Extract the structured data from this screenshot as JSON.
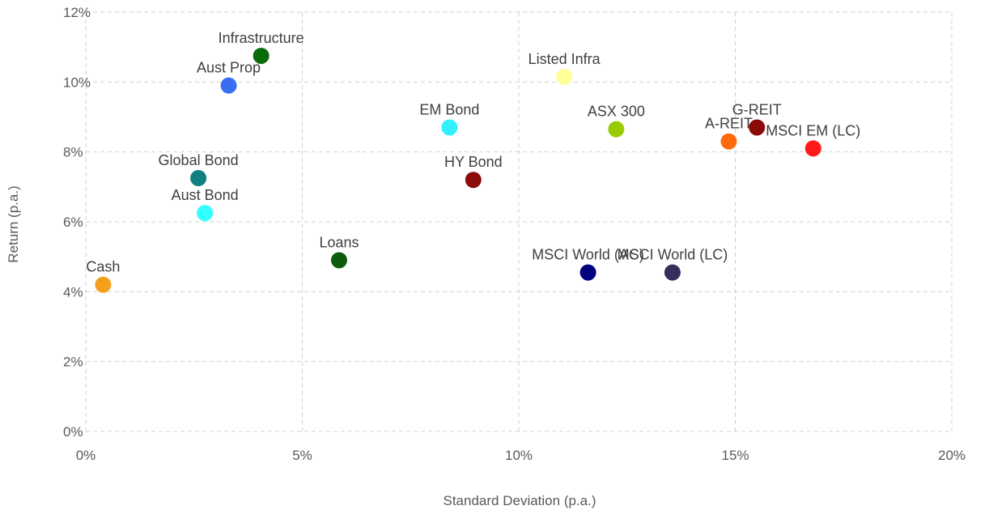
{
  "chart_data": {
    "type": "scatter",
    "xlabel": "Standard Deviation (p.a.)",
    "ylabel": "Return (p.a.)",
    "xlim": [
      0,
      20
    ],
    "ylim": [
      0,
      12
    ],
    "x_ticks": [
      {
        "value": 0,
        "label": "0%"
      },
      {
        "value": 5,
        "label": "5%"
      },
      {
        "value": 10,
        "label": "10%"
      },
      {
        "value": 15,
        "label": "15%"
      },
      {
        "value": 20,
        "label": "20%"
      }
    ],
    "y_ticks": [
      {
        "value": 0,
        "label": "0%"
      },
      {
        "value": 2,
        "label": "2%"
      },
      {
        "value": 4,
        "label": "4%"
      },
      {
        "value": 6,
        "label": "6%"
      },
      {
        "value": 8,
        "label": "8%"
      },
      {
        "value": 10,
        "label": "10%"
      },
      {
        "value": 12,
        "label": "12%"
      }
    ],
    "grid": true,
    "legend": "none",
    "points": [
      {
        "label": "Cash",
        "x": 0.4,
        "y": 4.2,
        "color": "#f5a01a"
      },
      {
        "label": "Aust Bond",
        "x": 2.75,
        "y": 6.25,
        "color": "#33ffff"
      },
      {
        "label": "Global Bond",
        "x": 2.6,
        "y": 7.25,
        "color": "#0f7f7f"
      },
      {
        "label": "Aust Prop",
        "x": 3.3,
        "y": 9.9,
        "color": "#3a6df0"
      },
      {
        "label": "Infrastructure",
        "x": 4.05,
        "y": 10.75,
        "color": "#0b6b0b"
      },
      {
        "label": "Loans",
        "x": 5.85,
        "y": 4.9,
        "color": "#0b5c0b"
      },
      {
        "label": "EM Bond",
        "x": 8.4,
        "y": 8.7,
        "color": "#33f0ff"
      },
      {
        "label": "HY Bond",
        "x": 8.95,
        "y": 7.2,
        "color": "#8b0a0a"
      },
      {
        "label": "Listed Infra",
        "x": 11.05,
        "y": 10.15,
        "color": "#ffff99"
      },
      {
        "label": "ASX 300",
        "x": 12.25,
        "y": 8.65,
        "color": "#99cc00"
      },
      {
        "label": "MSCI World (AC)",
        "x": 11.6,
        "y": 4.55,
        "color": "#000080"
      },
      {
        "label": "MSCI World (LC)",
        "x": 13.55,
        "y": 4.55,
        "color": "#33305e"
      },
      {
        "label": "A-REIT",
        "x": 14.85,
        "y": 8.3,
        "color": "#ff6a0d"
      },
      {
        "label": "G-REIT",
        "x": 15.5,
        "y": 8.7,
        "color": "#8b0a0a"
      },
      {
        "label": "MSCI EM (LC)",
        "x": 16.8,
        "y": 8.1,
        "color": "#ff1a1a"
      }
    ]
  }
}
